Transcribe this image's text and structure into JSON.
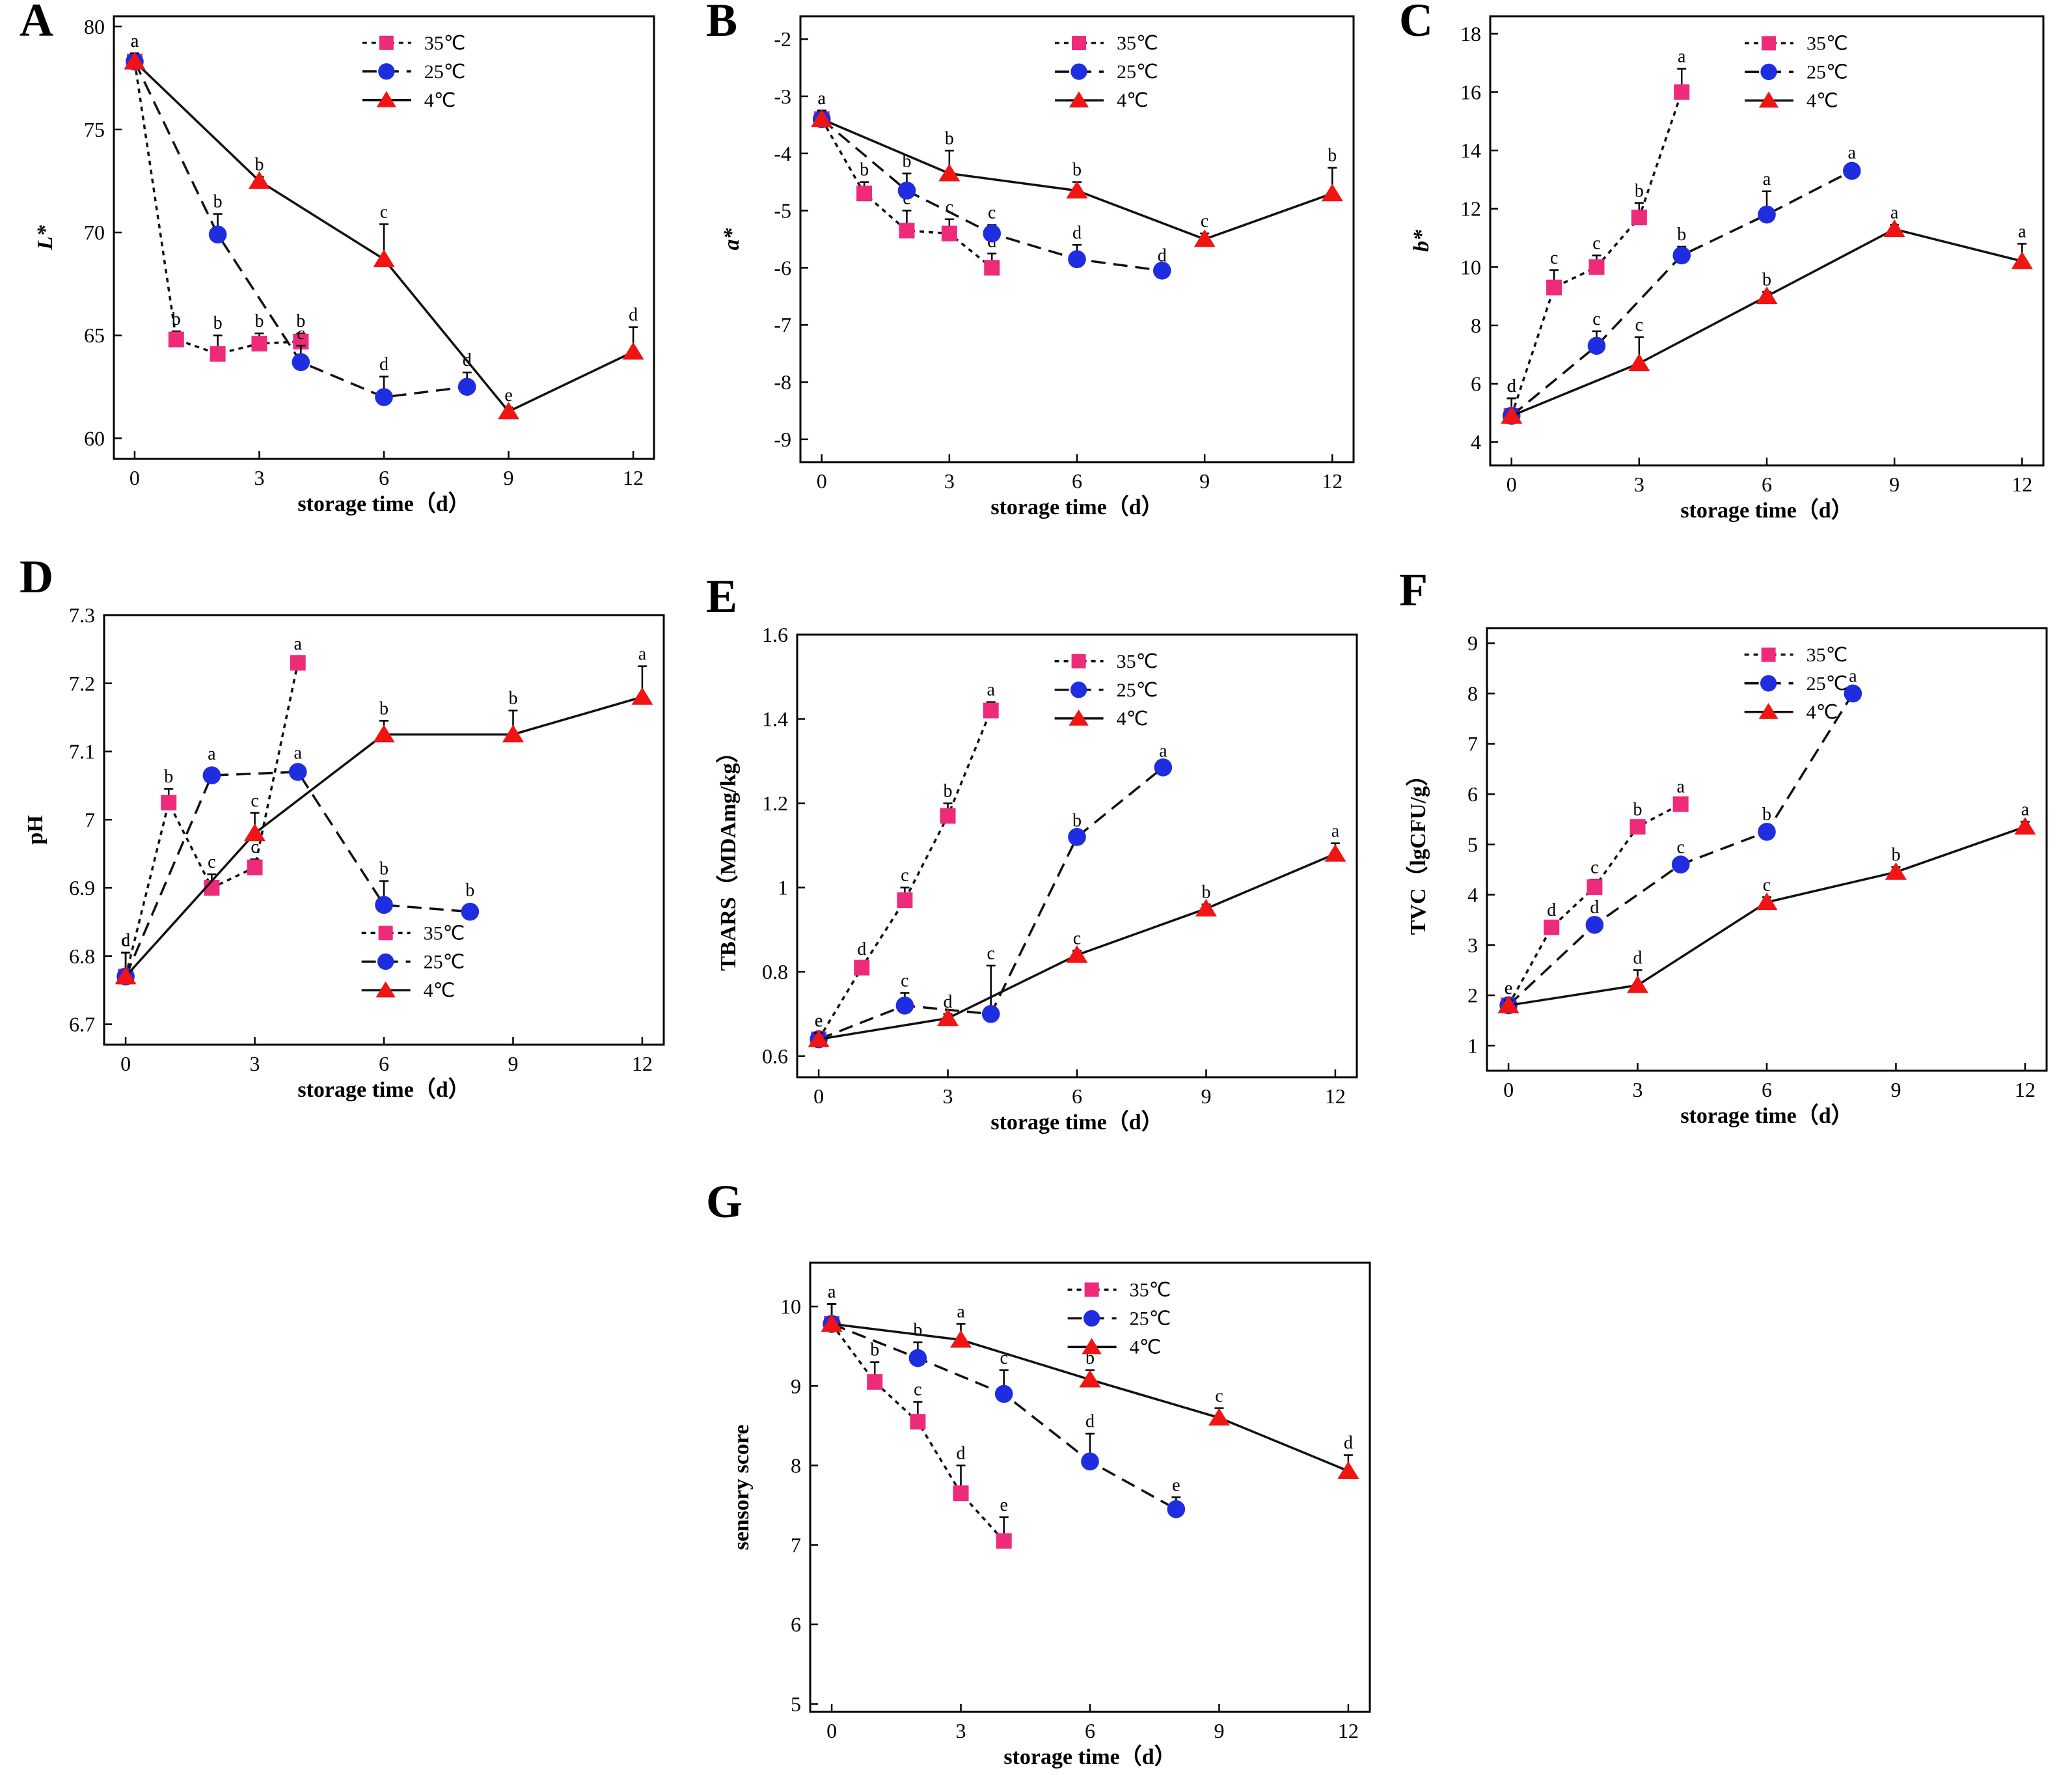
{
  "figure": {
    "legend_labels": [
      "35℃",
      "25℃",
      "4℃"
    ],
    "x_label": "storage time（d）",
    "colors": {
      "s35": "#ee2a7b",
      "s25": "#1f2de0",
      "s4": "#f01414",
      "line": "#111111"
    }
  },
  "chart_data": [
    {
      "panel": "A",
      "type": "line",
      "ylabel": "L*",
      "xlim": [
        -0.5,
        12.5
      ],
      "ylim": [
        59,
        80.5
      ],
      "xticks": [
        0,
        3,
        6,
        9,
        12
      ],
      "yticks": [
        60,
        65,
        70,
        75,
        80
      ],
      "legend_position": "top-right",
      "series": [
        {
          "name": "35℃",
          "x": [
            0,
            1,
            2,
            3,
            4
          ],
          "y": [
            78.3,
            64.8,
            64.1,
            64.6,
            64.7
          ],
          "err": [
            0.4,
            0.4,
            0.9,
            0.5,
            0.4
          ],
          "letters": [
            "a",
            "b",
            "b",
            "b",
            "b"
          ]
        },
        {
          "name": "25℃",
          "x": [
            0,
            2,
            4,
            6,
            8
          ],
          "y": [
            78.3,
            69.9,
            63.7,
            62.0,
            62.5
          ],
          "err": [
            0.4,
            1.0,
            0.8,
            1.0,
            0.7
          ],
          "letters": [
            "a",
            "b",
            "c",
            "d",
            "d"
          ]
        },
        {
          "name": "4℃",
          "x": [
            0,
            3,
            6,
            9,
            12
          ],
          "y": [
            78.3,
            72.5,
            68.7,
            61.3,
            64.2
          ],
          "err": [
            0.4,
            0.2,
            1.7,
            0.2,
            1.2
          ],
          "letters": [
            "a",
            "b",
            "c",
            "e",
            "d"
          ]
        }
      ]
    },
    {
      "panel": "B",
      "type": "line",
      "ylabel": "a*",
      "xlim": [
        -0.5,
        12.5
      ],
      "ylim": [
        -9.4,
        -1.6
      ],
      "xticks": [
        0,
        3,
        6,
        9,
        12
      ],
      "yticks": [
        -9,
        -8,
        -7,
        -6,
        -5,
        -4,
        -3,
        -2
      ],
      "legend_position": "top-right",
      "series": [
        {
          "name": "35℃",
          "x": [
            0,
            1,
            2,
            3,
            4
          ],
          "y": [
            -3.4,
            -4.7,
            -5.35,
            -5.4,
            -6.0
          ],
          "err": [
            0.15,
            0.2,
            0.35,
            0.25,
            0.25
          ],
          "letters": [
            "a",
            "b",
            "c",
            "c",
            "d"
          ]
        },
        {
          "name": "25℃",
          "x": [
            0,
            2,
            4,
            6,
            8
          ],
          "y": [
            -3.4,
            -4.65,
            -5.4,
            -5.85,
            -6.05
          ],
          "err": [
            0.15,
            0.3,
            0.15,
            0.25,
            0.05
          ],
          "letters": [
            "a",
            "b",
            "c",
            "d",
            "d"
          ]
        },
        {
          "name": "4℃",
          "x": [
            0,
            3,
            6,
            9,
            12
          ],
          "y": [
            -3.4,
            -4.35,
            -4.65,
            -5.5,
            -4.7
          ],
          "err": [
            0.15,
            0.4,
            0.15,
            0.1,
            0.45
          ],
          "letters": [
            "a",
            "b",
            "b",
            "c",
            "b"
          ]
        }
      ]
    },
    {
      "panel": "C",
      "type": "line",
      "ylabel": "b*",
      "xlim": [
        -0.5,
        12.5
      ],
      "ylim": [
        3.2,
        18.6
      ],
      "xticks": [
        0,
        3,
        6,
        9,
        12
      ],
      "yticks": [
        4,
        6,
        8,
        10,
        12,
        14,
        16,
        18
      ],
      "legend_position": "top-right",
      "series": [
        {
          "name": "35℃",
          "x": [
            0,
            1,
            2,
            3,
            4
          ],
          "y": [
            4.9,
            9.3,
            10.0,
            11.7,
            16.0
          ],
          "err": [
            0.6,
            0.6,
            0.4,
            0.5,
            0.8
          ],
          "letters": [
            "d",
            "c",
            "c",
            "b",
            "a"
          ]
        },
        {
          "name": "25℃",
          "x": [
            0,
            2,
            4,
            6,
            8
          ],
          "y": [
            4.9,
            7.3,
            10.4,
            11.8,
            13.3
          ],
          "err": [
            0.6,
            0.5,
            0.3,
            0.8,
            0.2
          ],
          "letters": [
            "d",
            "c",
            "b",
            "a",
            "a"
          ]
        },
        {
          "name": "4℃",
          "x": [
            0,
            3,
            6,
            9,
            12
          ],
          "y": [
            4.9,
            6.7,
            9.0,
            11.3,
            10.2
          ],
          "err": [
            0.6,
            0.9,
            0.15,
            0.15,
            0.6
          ],
          "letters": [
            "d",
            "c",
            "b",
            "a",
            "a"
          ]
        }
      ]
    },
    {
      "panel": "D",
      "type": "line",
      "ylabel": "pH",
      "xlim": [
        -0.5,
        12.5
      ],
      "ylim": [
        6.67,
        7.3
      ],
      "xticks": [
        0,
        3,
        6,
        9,
        12
      ],
      "yticks": [
        6.7,
        6.8,
        6.9,
        7.0,
        7.1,
        7.2,
        7.3
      ],
      "legend_position": "bottom-right",
      "series": [
        {
          "name": "35℃",
          "x": [
            0,
            1,
            2,
            3,
            4
          ],
          "y": [
            6.77,
            7.025,
            6.9,
            6.93,
            7.23
          ],
          "err": [
            0.035,
            0.02,
            0.02,
            0.012,
            0.01
          ],
          "letters": [
            "d",
            "b",
            "c",
            "c",
            "a"
          ]
        },
        {
          "name": "25℃",
          "x": [
            0,
            2,
            4,
            6,
            8
          ],
          "y": [
            6.77,
            7.065,
            7.07,
            6.875,
            6.865
          ],
          "err": [
            0.035,
            0.0,
            0.01,
            0.035,
            0.0
          ],
          "letters": [
            "c",
            "a",
            "a",
            "b",
            "b"
          ]
        },
        {
          "name": "4℃",
          "x": [
            0,
            3,
            6,
            9,
            12
          ],
          "y": [
            6.77,
            6.98,
            7.125,
            7.125,
            7.18
          ],
          "err": [
            0.035,
            0.03,
            0.02,
            0.035,
            0.045
          ],
          "letters": [
            "d",
            "c",
            "b",
            "b",
            "a"
          ]
        }
      ]
    },
    {
      "panel": "E",
      "type": "line",
      "ylabel": "TBARS（MDAmg/kg）",
      "xlim": [
        -0.5,
        12.5
      ],
      "ylim": [
        0.55,
        1.6
      ],
      "xticks": [
        0,
        3,
        6,
        9,
        12
      ],
      "yticks": [
        0.6,
        0.8,
        1.0,
        1.2,
        1.4,
        1.6
      ],
      "legend_position": "top-right",
      "series": [
        {
          "name": "35℃",
          "x": [
            0,
            1,
            2,
            3,
            4
          ],
          "y": [
            0.64,
            0.81,
            0.97,
            1.17,
            1.42
          ],
          "err": [
            0.015,
            0.015,
            0.03,
            0.03,
            0.02
          ],
          "letters": [
            "e",
            "d",
            "c",
            "b",
            "a"
          ]
        },
        {
          "name": "25℃",
          "x": [
            0,
            2,
            4,
            6,
            8
          ],
          "y": [
            0.64,
            0.72,
            0.7,
            1.12,
            1.285
          ],
          "err": [
            0.015,
            0.03,
            0.115,
            0.01,
            0.01
          ],
          "letters": [
            "e",
            "c",
            "c",
            "b",
            "a"
          ]
        },
        {
          "name": "4℃",
          "x": [
            0,
            3,
            6,
            9,
            12
          ],
          "y": [
            0.64,
            0.69,
            0.84,
            0.95,
            1.08
          ],
          "err": [
            0.015,
            0.01,
            0.01,
            0.01,
            0.025
          ],
          "letters": [
            "e",
            "d",
            "c",
            "b",
            "a"
          ]
        }
      ]
    },
    {
      "panel": "F",
      "type": "line",
      "ylabel": "TVC（lgCFU/g）",
      "xlim": [
        -0.5,
        12.5
      ],
      "ylim": [
        0.5,
        9.3
      ],
      "xticks": [
        0,
        3,
        6,
        9,
        12
      ],
      "yticks": [
        1,
        2,
        3,
        4,
        5,
        6,
        7,
        8,
        9
      ],
      "legend_position": "top-right",
      "series": [
        {
          "name": "35℃",
          "x": [
            0,
            1,
            2,
            3,
            4
          ],
          "y": [
            1.8,
            3.35,
            4.15,
            5.35,
            5.8
          ],
          "err": [
            0.1,
            0.1,
            0.15,
            0.1,
            0.1
          ],
          "letters": [
            "e",
            "d",
            "c",
            "b",
            "a"
          ]
        },
        {
          "name": "25℃",
          "x": [
            0,
            2,
            4,
            6,
            8
          ],
          "y": [
            1.8,
            3.4,
            4.6,
            5.25,
            8.0
          ],
          "err": [
            0.1,
            0.1,
            0.1,
            0.1,
            0.1
          ],
          "letters": [
            "e",
            "d",
            "c",
            "b",
            "a"
          ]
        },
        {
          "name": "4℃",
          "x": [
            0,
            3,
            6,
            9,
            12
          ],
          "y": [
            1.8,
            2.2,
            3.85,
            4.45,
            5.35
          ],
          "err": [
            0.1,
            0.3,
            0.1,
            0.1,
            0.1
          ],
          "letters": [
            "e",
            "d",
            "c",
            "b",
            "a"
          ]
        }
      ]
    },
    {
      "panel": "G",
      "type": "line",
      "ylabel": "sensory score",
      "xlim": [
        -0.5,
        12.5
      ],
      "ylim": [
        4.9,
        10.55
      ],
      "xticks": [
        0,
        3,
        6,
        9,
        12
      ],
      "yticks": [
        5,
        6,
        7,
        8,
        9,
        10
      ],
      "legend_position": "top-right",
      "series": [
        {
          "name": "35℃",
          "x": [
            0,
            1,
            2,
            3,
            4
          ],
          "y": [
            9.78,
            9.05,
            8.55,
            7.65,
            7.05
          ],
          "err": [
            0.25,
            0.25,
            0.25,
            0.35,
            0.3
          ],
          "letters": [
            "a",
            "b",
            "c",
            "d",
            "e"
          ]
        },
        {
          "name": "25℃",
          "x": [
            0,
            2,
            4,
            6,
            8
          ],
          "y": [
            9.78,
            9.35,
            8.9,
            8.05,
            7.45
          ],
          "err": [
            0.25,
            0.2,
            0.3,
            0.35,
            0.15
          ],
          "letters": [
            "a",
            "b",
            "c",
            "d",
            "e"
          ]
        },
        {
          "name": "4℃",
          "x": [
            0,
            3,
            6,
            9,
            12
          ],
          "y": [
            9.78,
            9.58,
            9.08,
            8.6,
            7.93
          ],
          "err": [
            0.25,
            0.2,
            0.12,
            0.12,
            0.2
          ],
          "letters": [
            "a",
            "a",
            "b",
            "c",
            "d"
          ]
        }
      ]
    }
  ]
}
